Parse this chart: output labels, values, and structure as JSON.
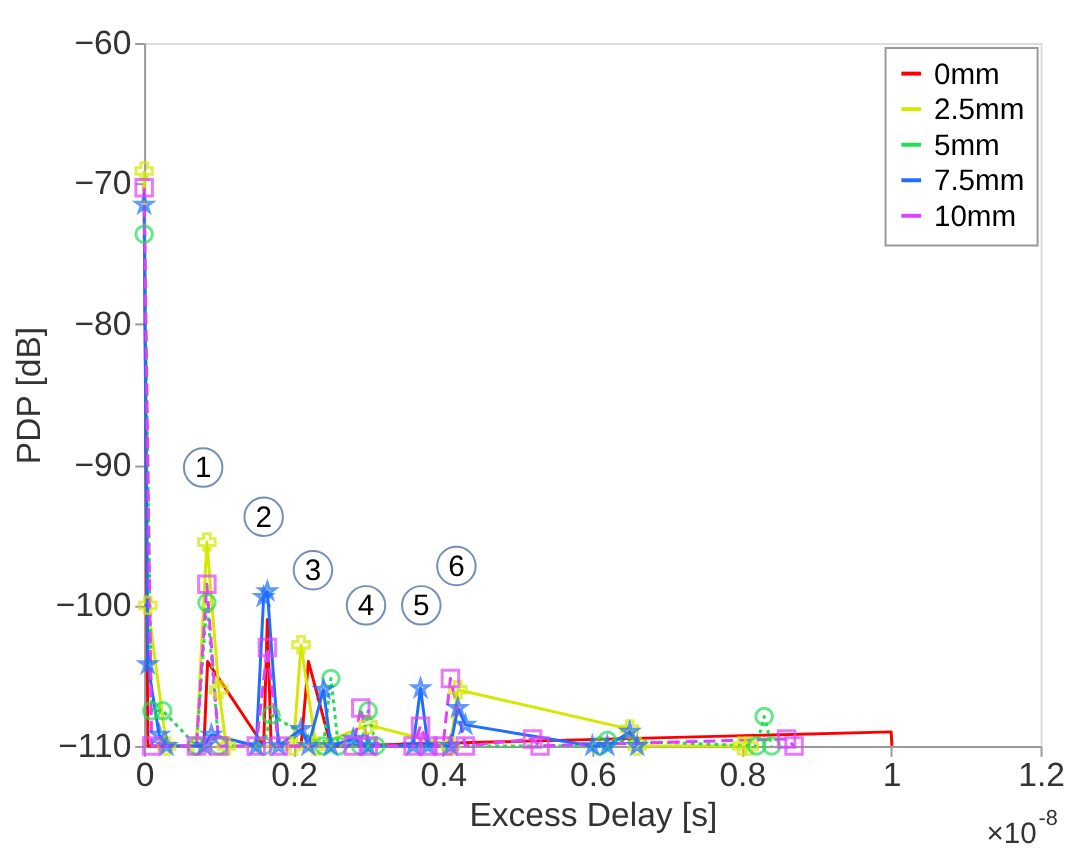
{
  "chart_data": {
    "type": "line",
    "xlabel": "Excess Delay [s]",
    "ylabel": "PDP [dB]",
    "xlim": [
      0,
      1.2
    ],
    "xticks": [
      0,
      0.2,
      0.4,
      0.6,
      0.8,
      1,
      1.2
    ],
    "ylim": [
      -110,
      -60
    ],
    "yticks": [
      -110,
      -100,
      -90,
      -80,
      -70,
      -60
    ],
    "legend": "top right",
    "grid": false,
    "series": [
      {
        "name": "0mm",
        "color": "#ff0000",
        "marker": "none",
        "line_style": "solid",
        "x": [
          0,
          0.005,
          0.02,
          0.08,
          0.085,
          0.16,
          0.165,
          0.17,
          0.21,
          0.22,
          0.25,
          0.26,
          1.0,
          1.001
        ],
        "values": [
          -70,
          -110,
          -110,
          -110,
          -104,
          -110,
          -101,
          -110,
          -110,
          -104,
          -110,
          -110,
          -109,
          -110
        ]
      },
      {
        "name": "2.5mm",
        "color": "#d4e800",
        "marker": "cross",
        "line_style": "solid",
        "x": [
          0,
          0.005,
          0.03,
          0.07,
          0.084,
          0.1,
          0.11,
          0.2,
          0.21,
          0.23,
          0.3,
          0.41,
          0.42,
          0.65,
          0.66,
          0.8,
          0.81
        ],
        "values": [
          -69.1,
          -100,
          -110,
          -110,
          -95.5,
          -106,
          -110,
          -110,
          -102.8,
          -110,
          -108.5,
          -110,
          -106,
          -108.8,
          -110,
          -110,
          -110
        ]
      },
      {
        "name": "5mm",
        "color": "#22dd55",
        "marker": "circle",
        "line_style": "dotted",
        "x": [
          0,
          0.01,
          0.025,
          0.07,
          0.084,
          0.1,
          0.16,
          0.17,
          0.24,
          0.25,
          0.26,
          0.29,
          0.3,
          0.31,
          0.61,
          0.62,
          0.82,
          0.83,
          0.84
        ],
        "values": [
          -73.6,
          -107.5,
          -107.5,
          -110,
          -99.8,
          -110,
          -110,
          -107.8,
          -110,
          -105.2,
          -110,
          -110,
          -107.5,
          -110,
          -110,
          -109.6,
          -110,
          -107.9,
          -110
        ]
      },
      {
        "name": "7.5mm",
        "color": "#1e6eff",
        "marker": "star",
        "line_style": "solid",
        "x": [
          0,
          0.005,
          0.02,
          0.03,
          0.08,
          0.09,
          0.15,
          0.16,
          0.165,
          0.18,
          0.21,
          0.22,
          0.24,
          0.25,
          0.28,
          0.3,
          0.36,
          0.37,
          0.38,
          0.41,
          0.42,
          0.43,
          0.6,
          0.62,
          0.65,
          0.66
        ],
        "values": [
          -71.5,
          -104.2,
          -109.2,
          -110,
          -110,
          -109.2,
          -110,
          -99.4,
          -99,
          -110,
          -108.8,
          -110,
          -106,
          -110,
          -109.5,
          -110,
          -110,
          -105.9,
          -110,
          -110,
          -107.3,
          -108.5,
          -110,
          -110,
          -109,
          -110
        ]
      },
      {
        "name": "10mm",
        "color": "#e040ff",
        "marker": "square",
        "line_style": "dashed",
        "x": [
          0,
          0.01,
          0.07,
          0.084,
          0.1,
          0.15,
          0.165,
          0.18,
          0.28,
          0.29,
          0.3,
          0.36,
          0.37,
          0.38,
          0.4,
          0.41,
          0.43,
          0.52,
          0.53,
          0.86,
          0.87
        ],
        "values": [
          -70.3,
          -110,
          -110,
          -98.5,
          -110,
          -110,
          -103,
          -110,
          -110,
          -107.3,
          -110,
          -110,
          -108.6,
          -110,
          -110,
          -105.2,
          -110,
          -109.5,
          -110,
          -109.5,
          -110
        ]
      }
    ],
    "annotations": [
      {
        "text": "1",
        "x": 0.079,
        "y": -90.2
      },
      {
        "text": "2",
        "x": 0.16,
        "y": -93.7
      },
      {
        "text": "3",
        "x": 0.226,
        "y": -97.5
      },
      {
        "text": "4",
        "x": 0.297,
        "y": -100
      },
      {
        "text": "5",
        "x": 0.371,
        "y": -100
      },
      {
        "text": "6",
        "x": 0.418,
        "y": -97.2
      },
      "×10$^{-8}$"
    ]
  }
}
